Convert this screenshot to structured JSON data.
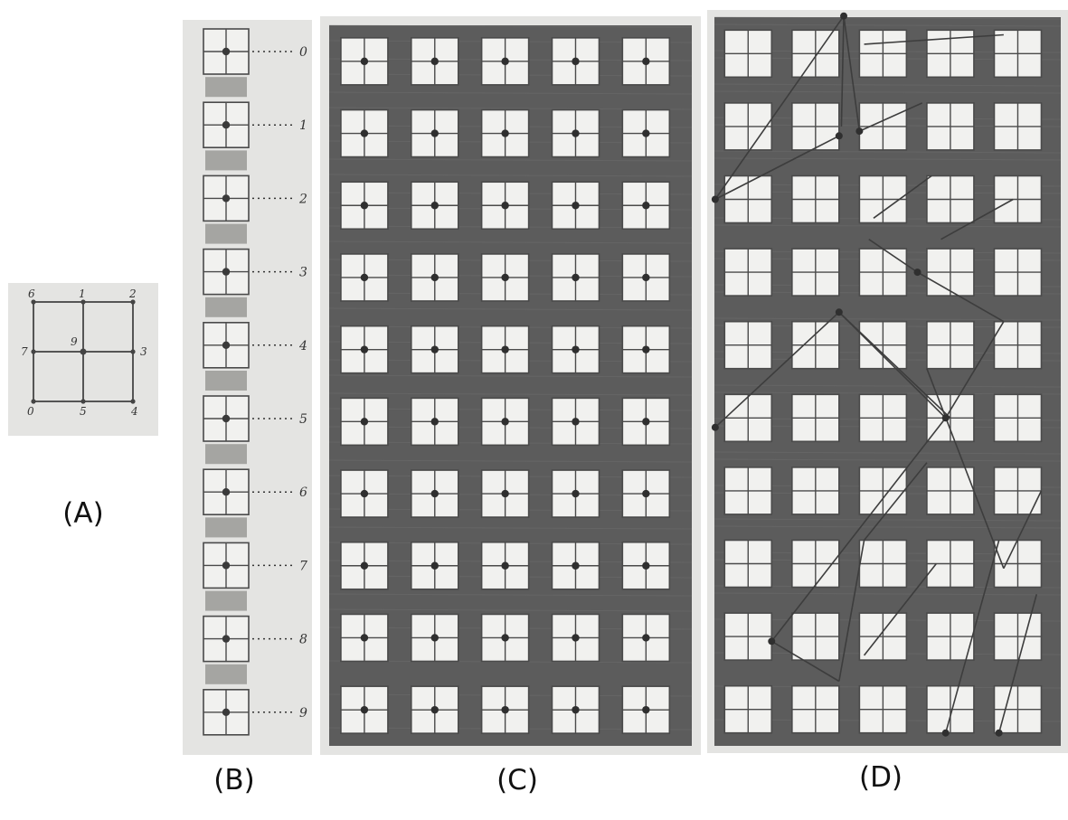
{
  "captions": {
    "a": "(A)",
    "b": "(B)",
    "c": "(C)",
    "d": "(D)"
  },
  "panel_a": {
    "labels": [
      {
        "text": "6",
        "node": "top-left"
      },
      {
        "text": "1",
        "node": "top-middle"
      },
      {
        "text": "2",
        "node": "top-right"
      },
      {
        "text": "7",
        "node": "middle-left"
      },
      {
        "text": "9",
        "node": "center"
      },
      {
        "text": "3",
        "node": "middle-right"
      },
      {
        "text": "0",
        "node": "bottom-left"
      },
      {
        "text": "5",
        "node": "bottom-middle"
      },
      {
        "text": "4",
        "node": "bottom-right"
      }
    ]
  },
  "panel_b": {
    "labels": [
      "0",
      "1",
      "2",
      "3",
      "4",
      "5",
      "6",
      "7",
      "8",
      "9"
    ]
  },
  "panel_c": {
    "rows": 10,
    "columns": 5,
    "mark": "center-dot"
  },
  "panel_d": {
    "rows": 10,
    "columns": 5,
    "mark": "connecting-lines"
  },
  "colors": {
    "background": "#ffffff",
    "paper": "#e4e4e2",
    "ink": "#4a4a4a",
    "grid_dark": "#5c5c5c",
    "cell": "#f1f1ef"
  }
}
